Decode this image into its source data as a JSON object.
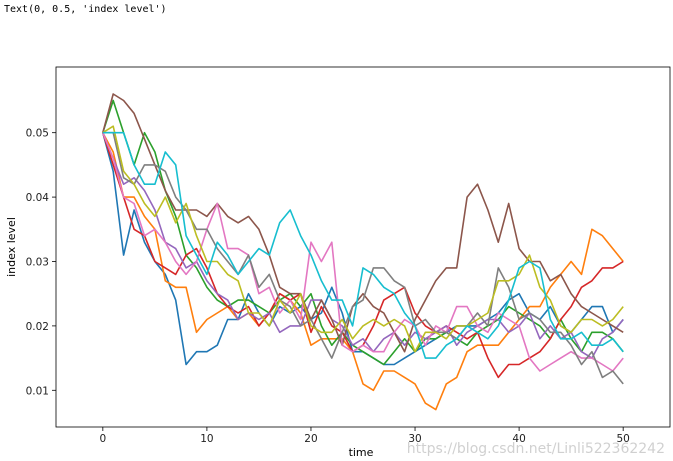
{
  "output_text": "Text(0, 0.5, 'index level')",
  "watermark": "https://blog.csdn.net/Linli522362242",
  "chart_data": {
    "type": "line",
    "xlabel": "time",
    "ylabel": "index level",
    "xlim": [
      -4.5,
      54.5
    ],
    "ylim": [
      0.0043,
      0.0602
    ],
    "xticks": [
      0,
      10,
      20,
      30,
      40,
      50
    ],
    "yticks": [
      0.01,
      0.02,
      0.03,
      0.04,
      0.05
    ],
    "ytick_labels": [
      "0.01",
      "0.02",
      "0.03",
      "0.04",
      "0.05"
    ],
    "grid": false,
    "x": [
      0,
      1,
      2,
      3,
      4,
      5,
      6,
      7,
      8,
      9,
      10,
      11,
      12,
      13,
      14,
      15,
      16,
      17,
      18,
      19,
      20,
      21,
      22,
      23,
      24,
      25,
      26,
      27,
      28,
      29,
      30,
      31,
      32,
      33,
      34,
      35,
      36,
      37,
      38,
      39,
      40,
      41,
      42,
      43,
      44,
      45,
      46,
      47,
      48,
      49,
      50
    ],
    "series": [
      {
        "color": "#1f77b4",
        "values": [
          0.05,
          0.044,
          0.031,
          0.038,
          0.033,
          0.03,
          0.028,
          0.024,
          0.014,
          0.016,
          0.016,
          0.017,
          0.021,
          0.021,
          0.025,
          0.022,
          0.02,
          0.023,
          0.022,
          0.023,
          0.021,
          0.022,
          0.026,
          0.022,
          0.016,
          0.016,
          0.015,
          0.014,
          0.014,
          0.015,
          0.016,
          0.017,
          0.018,
          0.019,
          0.02,
          0.02,
          0.02,
          0.021,
          0.022,
          0.024,
          0.025,
          0.022,
          0.021,
          0.023,
          0.02,
          0.019,
          0.021,
          0.023,
          0.023,
          0.019,
          0.021
        ]
      },
      {
        "color": "#ff7f0e",
        "values": [
          0.05,
          0.047,
          0.04,
          0.04,
          0.037,
          0.035,
          0.027,
          0.026,
          0.026,
          0.019,
          0.021,
          0.022,
          0.023,
          0.021,
          0.022,
          0.02,
          0.022,
          0.025,
          0.024,
          0.022,
          0.017,
          0.018,
          0.018,
          0.018,
          0.016,
          0.011,
          0.01,
          0.013,
          0.013,
          0.012,
          0.011,
          0.008,
          0.007,
          0.011,
          0.012,
          0.016,
          0.017,
          0.017,
          0.017,
          0.019,
          0.021,
          0.023,
          0.023,
          0.026,
          0.028,
          0.03,
          0.028,
          0.035,
          0.034,
          0.032,
          0.03
        ]
      },
      {
        "color": "#2ca02c",
        "values": [
          0.05,
          0.055,
          0.05,
          0.045,
          0.05,
          0.047,
          0.041,
          0.037,
          0.031,
          0.029,
          0.026,
          0.024,
          0.023,
          0.024,
          0.024,
          0.023,
          0.022,
          0.024,
          0.025,
          0.023,
          0.025,
          0.02,
          0.017,
          0.019,
          0.017,
          0.016,
          0.015,
          0.014,
          0.016,
          0.018,
          0.016,
          0.018,
          0.018,
          0.019,
          0.018,
          0.017,
          0.019,
          0.02,
          0.021,
          0.023,
          0.022,
          0.021,
          0.02,
          0.018,
          0.021,
          0.018,
          0.016,
          0.019,
          0.019,
          0.018,
          0.016
        ]
      },
      {
        "color": "#d62728",
        "values": [
          0.05,
          0.045,
          0.04,
          0.035,
          0.034,
          0.03,
          0.029,
          0.028,
          0.031,
          0.032,
          0.029,
          0.025,
          0.023,
          0.022,
          0.023,
          0.02,
          0.022,
          0.025,
          0.024,
          0.025,
          0.019,
          0.023,
          0.02,
          0.019,
          0.016,
          0.017,
          0.02,
          0.024,
          0.025,
          0.026,
          0.022,
          0.02,
          0.019,
          0.02,
          0.019,
          0.018,
          0.019,
          0.015,
          0.012,
          0.014,
          0.014,
          0.015,
          0.016,
          0.018,
          0.021,
          0.023,
          0.026,
          0.027,
          0.029,
          0.029,
          0.03
        ]
      },
      {
        "color": "#9467bd",
        "values": [
          0.05,
          0.046,
          0.042,
          0.043,
          0.041,
          0.038,
          0.033,
          0.032,
          0.029,
          0.03,
          0.027,
          0.025,
          0.024,
          0.021,
          0.022,
          0.021,
          0.022,
          0.019,
          0.02,
          0.02,
          0.024,
          0.024,
          0.021,
          0.02,
          0.017,
          0.018,
          0.016,
          0.018,
          0.019,
          0.017,
          0.019,
          0.018,
          0.019,
          0.02,
          0.017,
          0.019,
          0.02,
          0.021,
          0.021,
          0.019,
          0.02,
          0.022,
          0.018,
          0.02,
          0.018,
          0.019,
          0.016,
          0.015,
          0.018,
          0.019,
          0.021
        ]
      },
      {
        "color": "#8c564b",
        "values": [
          0.05,
          0.056,
          0.055,
          0.053,
          0.049,
          0.045,
          0.041,
          0.038,
          0.038,
          0.038,
          0.037,
          0.039,
          0.037,
          0.036,
          0.037,
          0.035,
          0.031,
          0.026,
          0.025,
          0.025,
          0.021,
          0.024,
          0.021,
          0.017,
          0.023,
          0.025,
          0.023,
          0.022,
          0.019,
          0.016,
          0.021,
          0.024,
          0.027,
          0.029,
          0.029,
          0.04,
          0.042,
          0.038,
          0.033,
          0.039,
          0.032,
          0.03,
          0.03,
          0.027,
          0.028,
          0.025,
          0.023,
          0.022,
          0.021,
          0.02,
          0.019
        ]
      },
      {
        "color": "#e377c2",
        "values": [
          0.05,
          0.046,
          0.04,
          0.039,
          0.034,
          0.035,
          0.033,
          0.03,
          0.028,
          0.03,
          0.035,
          0.039,
          0.032,
          0.032,
          0.031,
          0.025,
          0.026,
          0.022,
          0.024,
          0.021,
          0.033,
          0.03,
          0.033,
          0.017,
          0.016,
          0.017,
          0.016,
          0.016,
          0.019,
          0.021,
          0.02,
          0.017,
          0.02,
          0.019,
          0.023,
          0.023,
          0.02,
          0.019,
          0.022,
          0.021,
          0.02,
          0.015,
          0.013,
          0.014,
          0.015,
          0.016,
          0.015,
          0.015,
          0.014,
          0.013,
          0.015
        ]
      },
      {
        "color": "#7f7f7f",
        "values": [
          0.05,
          0.05,
          0.043,
          0.042,
          0.045,
          0.045,
          0.044,
          0.04,
          0.038,
          0.035,
          0.035,
          0.032,
          0.03,
          0.028,
          0.031,
          0.026,
          0.028,
          0.024,
          0.023,
          0.02,
          0.021,
          0.018,
          0.015,
          0.019,
          0.023,
          0.024,
          0.029,
          0.029,
          0.027,
          0.026,
          0.02,
          0.021,
          0.019,
          0.019,
          0.018,
          0.02,
          0.022,
          0.02,
          0.029,
          0.026,
          0.021,
          0.022,
          0.021,
          0.019,
          0.019,
          0.017,
          0.014,
          0.016,
          0.012,
          0.013,
          0.011
        ]
      },
      {
        "color": "#bcbd22",
        "values": [
          0.05,
          0.051,
          0.044,
          0.042,
          0.039,
          0.037,
          0.04,
          0.036,
          0.039,
          0.034,
          0.03,
          0.03,
          0.028,
          0.027,
          0.022,
          0.022,
          0.02,
          0.024,
          0.022,
          0.025,
          0.02,
          0.019,
          0.019,
          0.021,
          0.018,
          0.02,
          0.021,
          0.02,
          0.021,
          0.02,
          0.016,
          0.019,
          0.019,
          0.018,
          0.02,
          0.02,
          0.021,
          0.022,
          0.027,
          0.027,
          0.028,
          0.031,
          0.026,
          0.024,
          0.02,
          0.019,
          0.021,
          0.021,
          0.02,
          0.021,
          0.023
        ]
      },
      {
        "color": "#17becf",
        "values": [
          0.05,
          0.05,
          0.05,
          0.045,
          0.042,
          0.042,
          0.047,
          0.045,
          0.034,
          0.031,
          0.028,
          0.033,
          0.031,
          0.028,
          0.03,
          0.032,
          0.031,
          0.036,
          0.038,
          0.034,
          0.031,
          0.027,
          0.024,
          0.024,
          0.02,
          0.029,
          0.028,
          0.026,
          0.025,
          0.022,
          0.02,
          0.015,
          0.015,
          0.017,
          0.018,
          0.02,
          0.019,
          0.018,
          0.02,
          0.024,
          0.029,
          0.03,
          0.029,
          0.021,
          0.018,
          0.018,
          0.019,
          0.017,
          0.017,
          0.018,
          0.016
        ]
      }
    ]
  }
}
